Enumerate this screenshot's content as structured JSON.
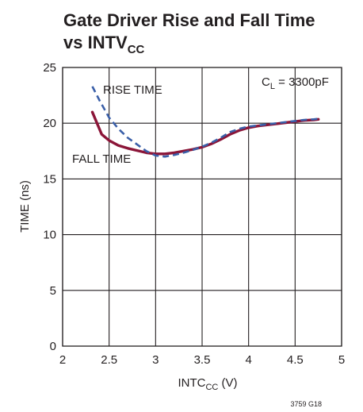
{
  "chart_data": {
    "type": "line",
    "title": {
      "line1": "Gate Driver Rise and Fall Time",
      "line2_main": "vs INTV",
      "line2_sub": "CC"
    },
    "xlabel": {
      "main": "INTC",
      "sub": "CC",
      "suffix": " (V)"
    },
    "ylabel": "TIME (ns)",
    "xlim": [
      2,
      5
    ],
    "ylim": [
      0,
      25
    ],
    "xticks": [
      2,
      2.5,
      3,
      3.5,
      4,
      4.5,
      5
    ],
    "xtick_labels": [
      "2",
      "2.5",
      "3",
      "3.5",
      "4",
      "4.5",
      "5"
    ],
    "yticks": [
      0,
      5,
      10,
      15,
      20,
      25
    ],
    "ytick_labels": [
      "0",
      "5",
      "10",
      "15",
      "20",
      "25"
    ],
    "grid": true,
    "annotation": {
      "main": "C",
      "sub": "L",
      "rest": " = 3300pF"
    },
    "figure_id": "3759 G18",
    "series": [
      {
        "name": "RISE TIME",
        "color": "#3a5fa8",
        "dash": "dashed",
        "x": [
          2.32,
          2.4,
          2.5,
          2.6,
          2.7,
          2.8,
          2.9,
          3.0,
          3.1,
          3.2,
          3.3,
          3.4,
          3.5,
          3.6,
          3.7,
          3.8,
          3.9,
          4.0,
          4.1,
          4.2,
          4.3,
          4.4,
          4.5,
          4.6,
          4.7,
          4.75
        ],
        "y": [
          23.3,
          22.0,
          20.5,
          19.5,
          18.7,
          18.1,
          17.5,
          17.1,
          17.0,
          17.15,
          17.35,
          17.6,
          17.9,
          18.25,
          18.7,
          19.2,
          19.5,
          19.7,
          19.8,
          19.9,
          20.0,
          20.1,
          20.2,
          20.3,
          20.35,
          20.4
        ]
      },
      {
        "name": "FALL TIME",
        "color": "#8b1538",
        "dash": "solid",
        "x": [
          2.32,
          2.37,
          2.42,
          2.5,
          2.6,
          2.7,
          2.8,
          2.9,
          3.0,
          3.1,
          3.2,
          3.3,
          3.4,
          3.5,
          3.6,
          3.7,
          3.8,
          3.9,
          4.0,
          4.1,
          4.2,
          4.3,
          4.4,
          4.5,
          4.6,
          4.7,
          4.75
        ],
        "y": [
          21.0,
          20.0,
          19.0,
          18.45,
          18.0,
          17.75,
          17.55,
          17.35,
          17.25,
          17.25,
          17.35,
          17.5,
          17.65,
          17.85,
          18.15,
          18.55,
          19.0,
          19.35,
          19.6,
          19.75,
          19.85,
          19.95,
          20.05,
          20.15,
          20.25,
          20.3,
          20.35
        ]
      }
    ],
    "series_labels": [
      {
        "text": "RISE TIME",
        "series": 0
      },
      {
        "text": "FALL TIME",
        "series": 1
      }
    ]
  }
}
